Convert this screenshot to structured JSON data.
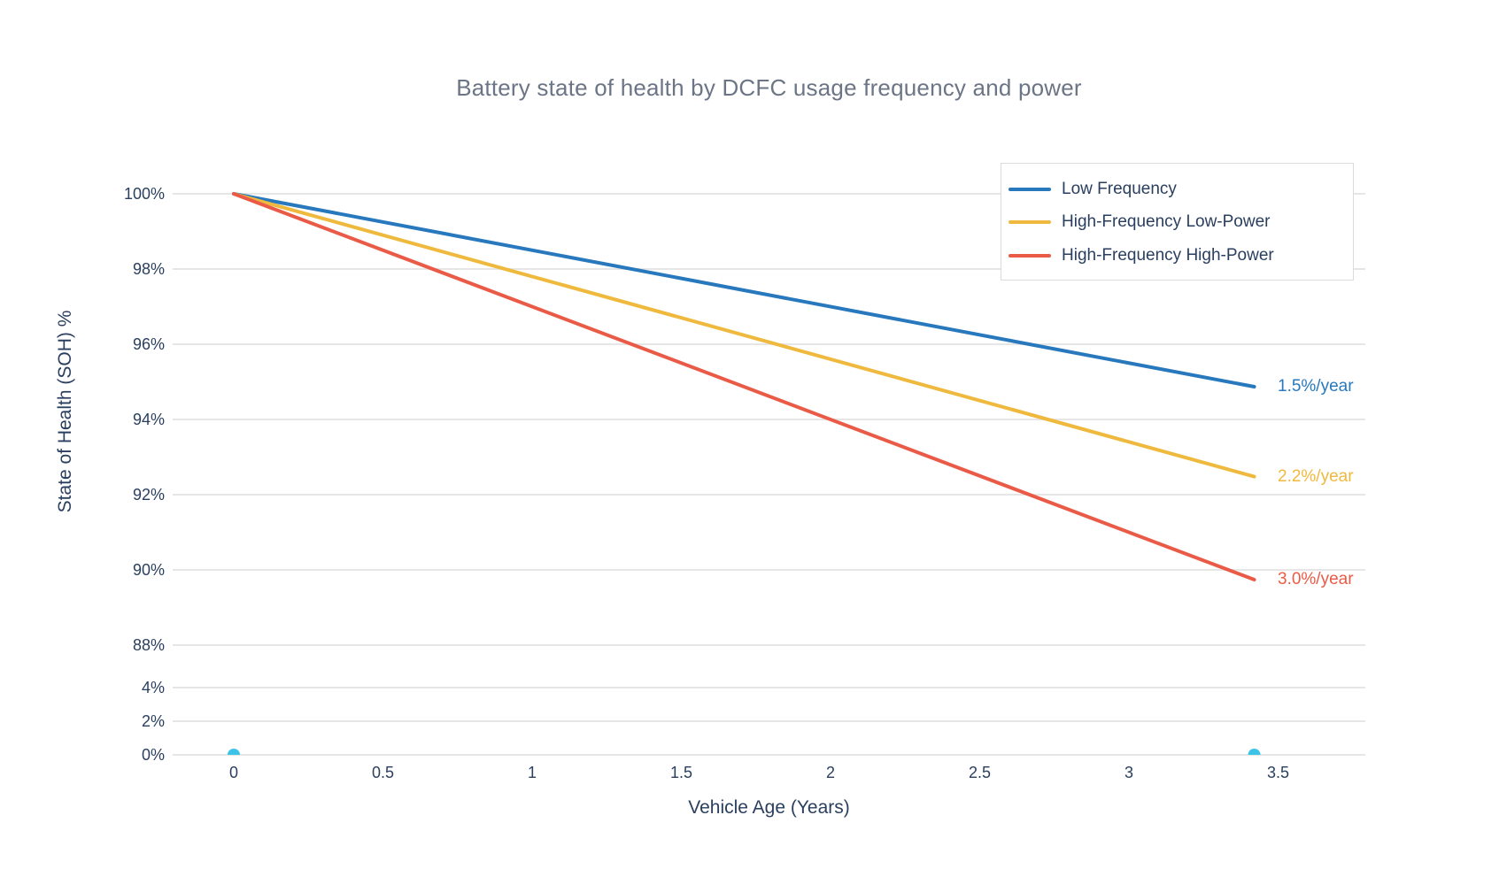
{
  "colors": {
    "text": "#2A3F5F",
    "title": "#6B7585",
    "grid": "#E6E6E6",
    "legend_border": "#DBDBDB",
    "background": "#FFFFFF"
  },
  "chart_data": {
    "type": "line",
    "title": "Battery state of health by DCFC usage frequency and power",
    "xlabel": "Vehicle Age (Years)",
    "ylabel": "State of Health (SOH) %",
    "grid": true,
    "x_range": [
      0,
      3.5
    ],
    "x_ticks": [
      {
        "v": 0,
        "label": "0"
      },
      {
        "v": 0.5,
        "label": "0.5"
      },
      {
        "v": 1,
        "label": "1"
      },
      {
        "v": 1.5,
        "label": "1.5"
      },
      {
        "v": 2,
        "label": "2"
      },
      {
        "v": 2.5,
        "label": "2.5"
      },
      {
        "v": 3,
        "label": "3"
      },
      {
        "v": 3.5,
        "label": "3.5"
      }
    ],
    "y_ticks": [
      {
        "v": 100,
        "label": "100%"
      },
      {
        "v": 98,
        "label": "98%"
      },
      {
        "v": 96,
        "label": "96%"
      },
      {
        "v": 94,
        "label": "94%"
      },
      {
        "v": 92,
        "label": "92%"
      },
      {
        "v": 90,
        "label": "90%"
      },
      {
        "v": 88,
        "label": "88%"
      },
      {
        "v": 4,
        "label": "4%"
      },
      {
        "v": 2,
        "label": "2%"
      },
      {
        "v": 0,
        "label": "0%"
      }
    ],
    "y_axis_break": {
      "between_labels": [
        "88%",
        "4%"
      ],
      "note": "axis compressed: 0-4% block shown below 88-100% block"
    },
    "series": [
      {
        "name": "Low Frequency",
        "color": "#2878BD",
        "rate_label": "1.5%/year",
        "x": [
          0,
          3.42
        ],
        "y": [
          100,
          94.87
        ]
      },
      {
        "name": "High-Frequency Low-Power",
        "color": "#EFB93D",
        "rate_label": "2.2%/year",
        "x": [
          0,
          3.42
        ],
        "y": [
          100,
          92.48
        ]
      },
      {
        "name": "High-Frequency High-Power",
        "color": "#EA5B47",
        "rate_label": "3.0%/year",
        "x": [
          0,
          3.42
        ],
        "y": [
          100,
          89.74
        ]
      }
    ],
    "baseline_markers": {
      "color": "#3BC4E8",
      "points": [
        {
          "x": 0,
          "y": 0
        },
        {
          "x": 3.42,
          "y": 0
        }
      ]
    },
    "legend": {
      "position": "top-right"
    }
  }
}
